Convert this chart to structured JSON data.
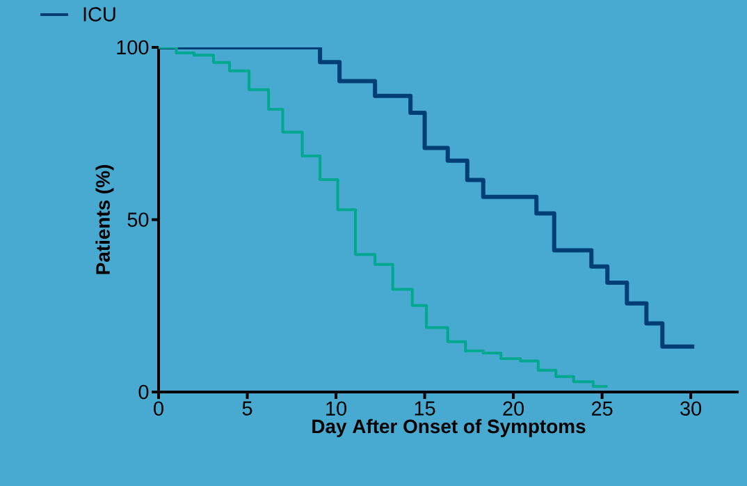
{
  "chart_data": {
    "type": "step",
    "xlabel": "Day After Onset of Symptoms",
    "ylabel": "Patients (%)",
    "series": [
      {
        "name": "ICU",
        "color": "#003f74",
        "x": [
          0,
          9.1,
          10.2,
          12.2,
          14.2,
          15.0,
          16.3,
          17.4,
          18.3,
          21.3,
          22.3,
          24.4,
          25.3,
          26.4,
          27.5,
          28.4,
          30.2
        ],
        "values": [
          100,
          95.7,
          90.2,
          85.9,
          81.0,
          70.8,
          67.1,
          61.5,
          56.6,
          51.8,
          41.1,
          36.4,
          31.7,
          25.7,
          19.9,
          13.2,
          13.2
        ]
      },
      {
        "color": "#00a88f",
        "x": [
          0,
          1.0,
          2.0,
          3.1,
          4.0,
          5.1,
          6.2,
          7.0,
          8.1,
          9.1,
          10.1,
          11.1,
          12.2,
          13.2,
          14.3,
          15.1,
          16.3,
          17.3,
          18.3,
          19.3,
          20.4,
          21.4,
          22.4,
          23.4,
          24.5,
          25.3
        ],
        "values": [
          100,
          98.4,
          97.7,
          95.6,
          93.2,
          87.7,
          82.0,
          75.4,
          68.5,
          61.6,
          52.9,
          39.9,
          37.0,
          29.8,
          25.1,
          18.7,
          14.6,
          11.9,
          11.3,
          9.7,
          9.0,
          6.3,
          4.5,
          3.0,
          1.6,
          1.6
        ]
      }
    ],
    "xlim": [
      0,
      32.7
    ],
    "ylim": [
      0,
      100
    ],
    "xticks": [
      0,
      5,
      10,
      15,
      20,
      25,
      30
    ],
    "yticks": [
      0,
      50,
      100
    ],
    "grid": false,
    "legend": "top left",
    "marker": "none",
    "line_style": "solid"
  }
}
